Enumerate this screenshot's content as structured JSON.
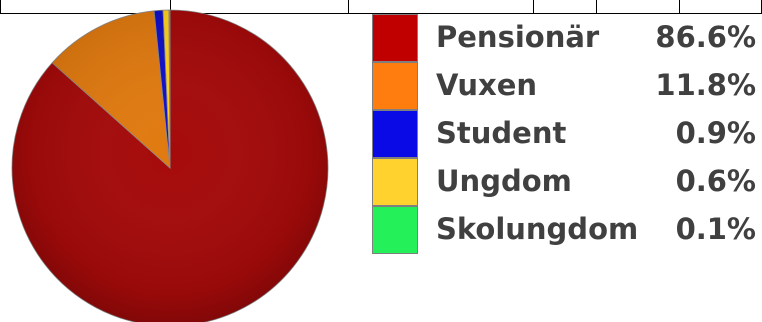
{
  "chart_data": {
    "type": "pie",
    "categories": [
      "Pensionär",
      "Vuxen",
      "Student",
      "Ungdom",
      "Skolungdom"
    ],
    "values": [
      86.6,
      11.8,
      0.9,
      0.6,
      0.1
    ],
    "value_labels": [
      "86.6%",
      "11.8%",
      "0.9%",
      "0.6%",
      "0.1%"
    ],
    "colors": [
      "#a50a0a",
      "#e07a10",
      "#1010c8",
      "#ffd21e",
      "#22e65a"
    ],
    "legend_position": "right",
    "start_angle": "top",
    "direction": "clockwise"
  },
  "legend": {
    "items": [
      {
        "label": "Pensionär",
        "value": "86.6%",
        "color": "#c00000"
      },
      {
        "label": "Vuxen",
        "value": "11.8%",
        "color": "#ff7d0f"
      },
      {
        "label": "Student",
        "value": "0.9%",
        "color": "#0a0ae6"
      },
      {
        "label": "Ungdom",
        "value": "0.6%",
        "color": "#ffd22d"
      },
      {
        "label": "Skolungdom",
        "value": "0.1%",
        "color": "#24f05a"
      }
    ]
  }
}
